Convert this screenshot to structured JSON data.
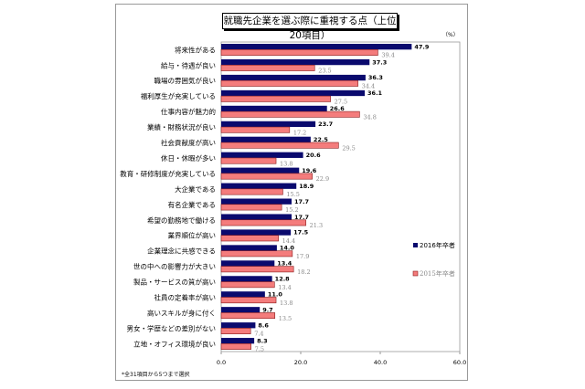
{
  "chart_data": {
    "type": "bar",
    "orientation": "horizontal",
    "title": "就職先企業を選ぶ際に重視する点（上位20項目）",
    "unit": "（%）",
    "note": "*全31項目から5つまで選択",
    "categories": [
      "将来性がある",
      "給与・待遇が良い",
      "職場の雰囲気が良い",
      "福利厚生が充実している",
      "仕事内容が魅力的",
      "業績・財務状況が良い",
      "社会貢献度が高い",
      "休日・休暇が多い",
      "教育・研修制度が充実している",
      "大企業である",
      "有名企業である",
      "希望の勤務地で働ける",
      "業界順位が高い",
      "企業理念に共感できる",
      "世の中への影響力が大きい",
      "製品・サービスの質が高い",
      "社員の定着率が高い",
      "高いスキルが身に付く",
      "男女・学歴などの差別がない",
      "立地・オフィス環境が良い"
    ],
    "series": [
      {
        "name": "2016年卒者",
        "color": "#0a0a6e",
        "values": [
          47.9,
          37.3,
          36.3,
          36.1,
          26.6,
          23.7,
          22.5,
          20.6,
          19.6,
          18.9,
          17.7,
          17.7,
          17.5,
          14.0,
          13.4,
          12.8,
          11.0,
          9.7,
          8.6,
          8.3
        ]
      },
      {
        "name": "2015年卒者",
        "color": "#f47c7c",
        "values": [
          39.4,
          23.5,
          34.4,
          27.5,
          34.8,
          17.2,
          29.5,
          13.8,
          22.9,
          15.5,
          15.2,
          21.3,
          14.4,
          17.9,
          18.2,
          13.4,
          13.8,
          13.5,
          7.4,
          7.5
        ]
      }
    ],
    "xlim": [
      0,
      60
    ],
    "xticks": [
      "0.0",
      "20.0",
      "40.0",
      "60.0"
    ],
    "legend": "right",
    "grid": false
  }
}
